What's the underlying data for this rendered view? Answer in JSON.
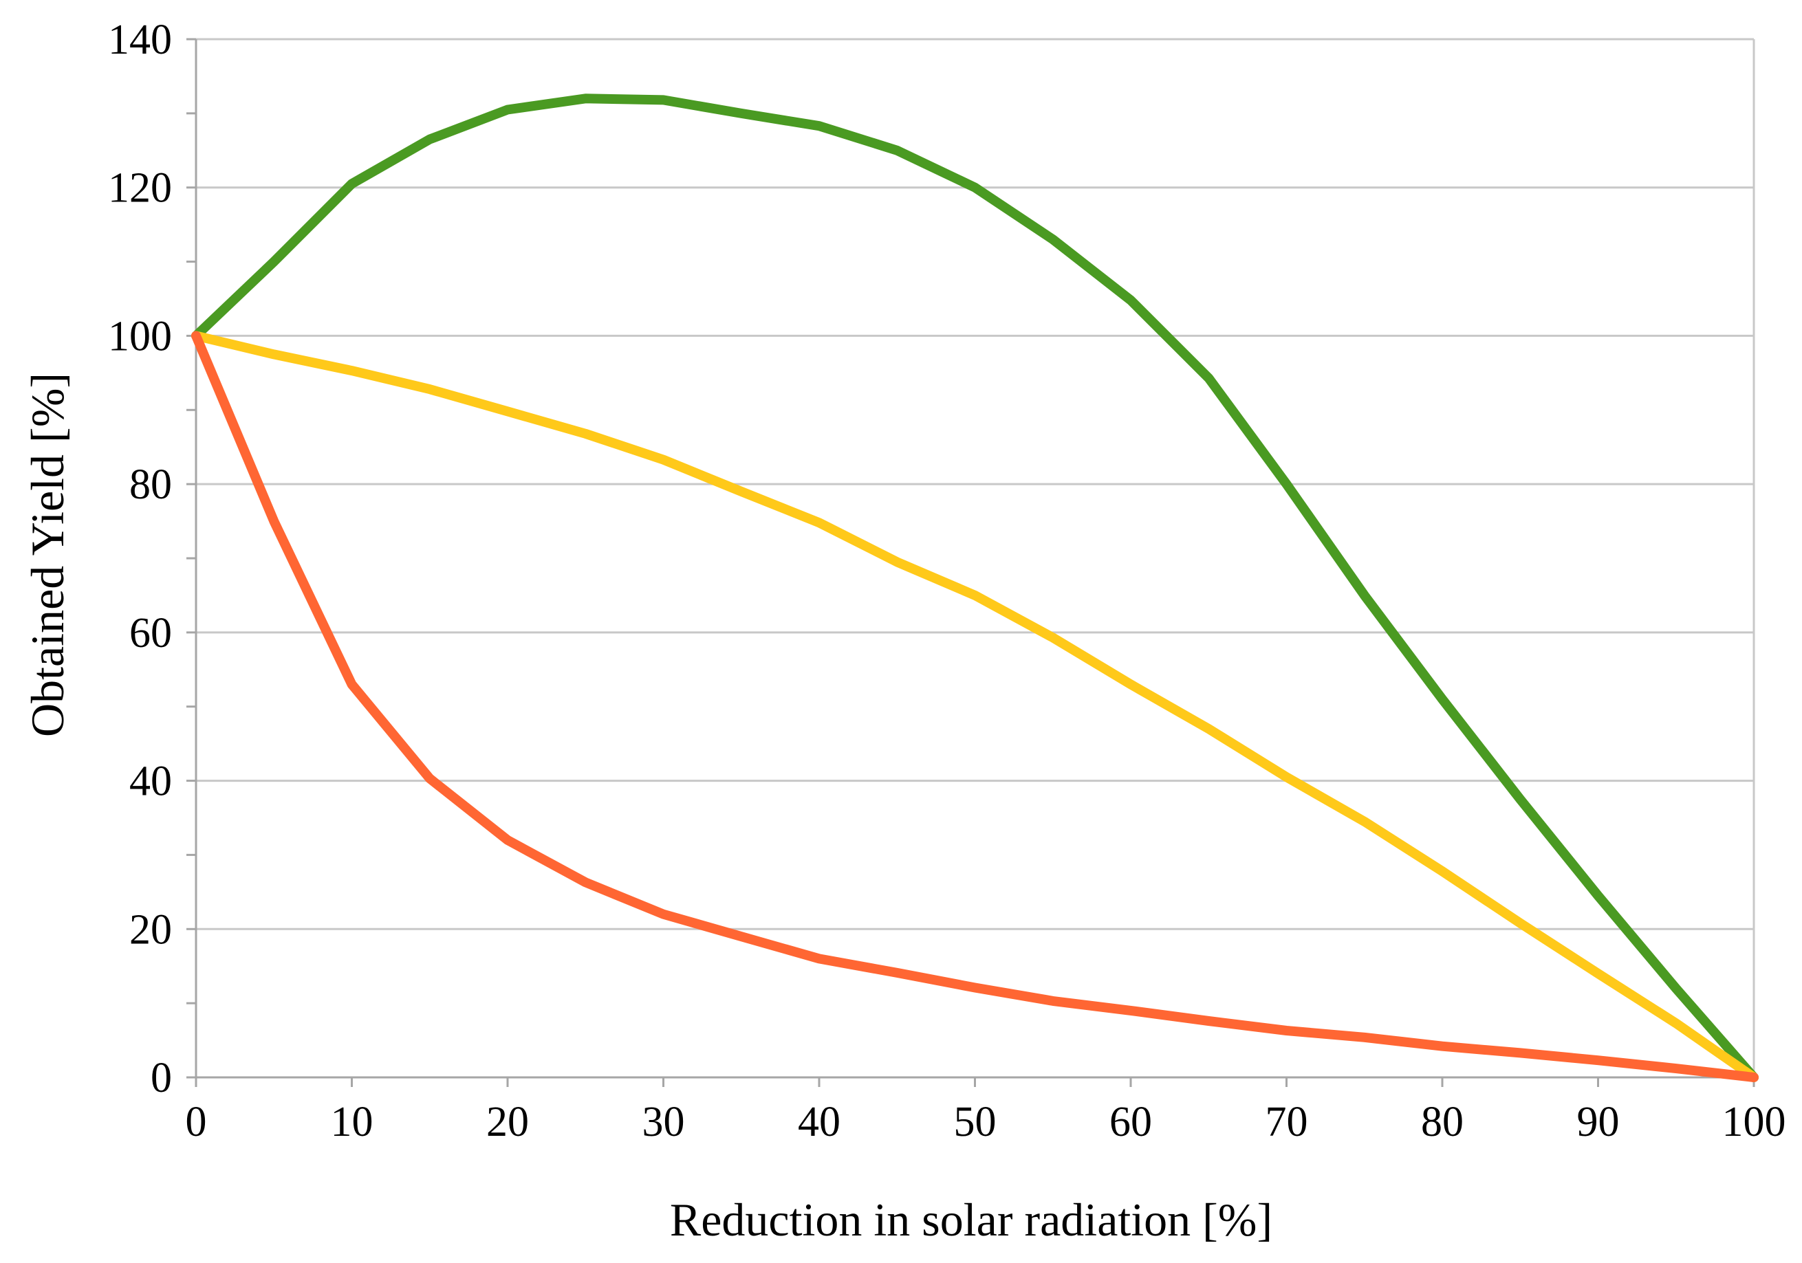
{
  "chart_data": {
    "type": "line",
    "title": "",
    "xlabel": "Reduction in solar radiation [%]",
    "ylabel": "Obtained Yield [%]",
    "xlim": [
      0,
      100
    ],
    "ylim": [
      0,
      140
    ],
    "x_ticks": [
      0,
      10,
      20,
      30,
      40,
      50,
      60,
      70,
      80,
      90,
      100
    ],
    "y_ticks": [
      0,
      20,
      40,
      60,
      80,
      100,
      120,
      140
    ],
    "y_minor_step": 10,
    "grid": "horizontal",
    "x": [
      0,
      5,
      10,
      15,
      20,
      25,
      30,
      35,
      40,
      45,
      50,
      55,
      60,
      65,
      70,
      75,
      80,
      85,
      90,
      95,
      100
    ],
    "series": [
      {
        "name": "green",
        "color": "#4a9a22",
        "values": [
          100,
          110,
          120.5,
          126.5,
          130.5,
          132,
          131.8,
          130,
          128.3,
          125,
          120,
          113,
          104.8,
          94.3,
          80,
          65,
          51,
          37.5,
          24.5,
          12,
          0
        ]
      },
      {
        "name": "yellow",
        "color": "#ffc91a",
        "values": [
          100,
          97.5,
          95.3,
          92.8,
          89.8,
          86.8,
          83.3,
          79,
          74.8,
          69.5,
          65,
          59.3,
          53,
          47,
          40.5,
          34.5,
          27.8,
          20.8,
          14,
          7.3,
          0
        ]
      },
      {
        "name": "orange",
        "color": "#ff6633",
        "values": [
          100,
          75,
          53,
          40.3,
          32,
          26.3,
          22,
          19,
          16,
          14.1,
          12.1,
          10.3,
          9,
          7.6,
          6.3,
          5.4,
          4.2,
          3.3,
          2.3,
          1.2,
          0
        ]
      }
    ]
  }
}
